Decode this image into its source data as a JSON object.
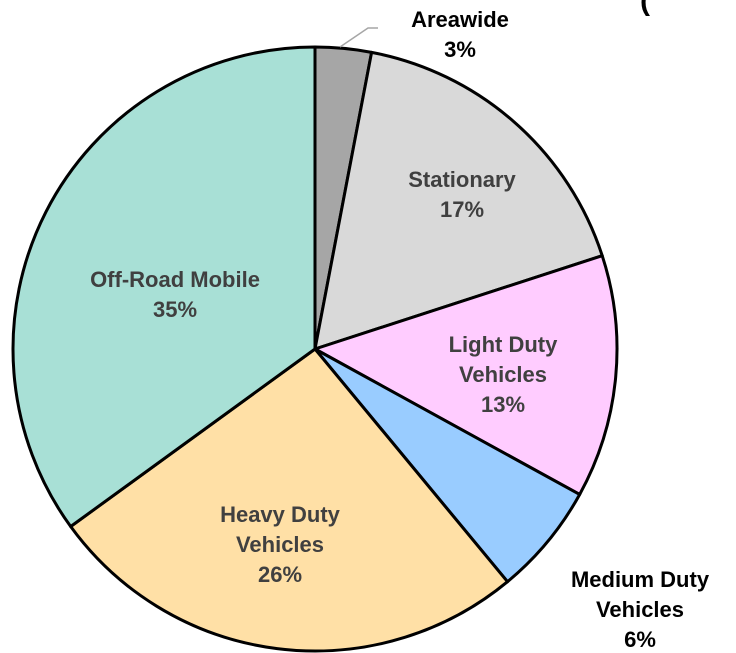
{
  "chart_data": {
    "type": "pie",
    "title": "(",
    "categories": [
      "Areawide",
      "Stationary",
      "Light Duty Vehicles",
      "Medium Duty Vehicles",
      "Heavy Duty Vehicles",
      "Off-Road Mobile"
    ],
    "values": [
      3,
      17,
      13,
      6,
      26,
      35
    ],
    "value_labels": [
      "3%",
      "17%",
      "13%",
      "6%",
      "26%",
      "35%"
    ],
    "colors": [
      "#a6a6a6",
      "#d9d9d9",
      "#ffccff",
      "#99ccff",
      "#ffe0a6",
      "#a8e0d6"
    ]
  }
}
